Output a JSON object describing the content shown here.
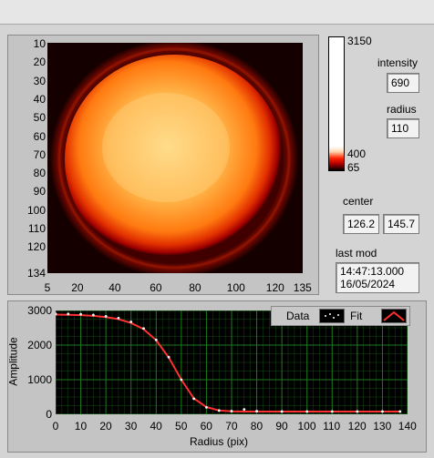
{
  "image_view": {
    "y_ticks": [
      "10",
      "20",
      "30",
      "40",
      "50",
      "60",
      "70",
      "80",
      "90",
      "100",
      "110",
      "120",
      "134"
    ],
    "x_ticks": [
      "5",
      "20",
      "40",
      "60",
      "80",
      "100",
      "120",
      "135"
    ]
  },
  "colorbar": {
    "ticks": [
      "3150",
      "400",
      "65"
    ]
  },
  "readouts": {
    "intensity_label": "intensity",
    "intensity_value": "690",
    "radius_label": "radius",
    "radius_value": "110",
    "center_label": "center",
    "center_x": "126.2",
    "center_y": "145.7",
    "last_mod_label": "last mod",
    "last_mod_time": "14:47:13.000",
    "last_mod_date": "16/05/2024"
  },
  "chart_data": {
    "type": "scatter",
    "xlabel": "Radius (pix)",
    "ylabel": "Amplitude",
    "xlim": [
      0,
      140
    ],
    "ylim": [
      0,
      3000
    ],
    "x_ticks": [
      "0",
      "10",
      "20",
      "30",
      "40",
      "50",
      "60",
      "70",
      "80",
      "90",
      "100",
      "110",
      "120",
      "130",
      "140"
    ],
    "y_ticks": [
      "0",
      "1000",
      "2000",
      "3000"
    ],
    "grid": true,
    "legend": [
      "Data",
      "Fit"
    ],
    "series": [
      {
        "name": "Data",
        "style": "points",
        "color": "#ffffff",
        "x": [
          0,
          5,
          10,
          15,
          20,
          25,
          30,
          35,
          40,
          45,
          50,
          55,
          60,
          65,
          70,
          75,
          80,
          90,
          100,
          110,
          120,
          130,
          137
        ],
        "y": [
          2900,
          2900,
          2890,
          2870,
          2830,
          2780,
          2670,
          2480,
          2150,
          1650,
          1000,
          450,
          200,
          110,
          90,
          140,
          90,
          80,
          80,
          80,
          80,
          80,
          80
        ]
      },
      {
        "name": "Fit",
        "style": "line",
        "color": "#ff3030",
        "x": [
          0,
          5,
          10,
          15,
          20,
          25,
          30,
          35,
          40,
          45,
          50,
          55,
          60,
          65,
          70,
          75,
          80,
          90,
          100,
          110,
          120,
          130,
          137
        ],
        "y": [
          2880,
          2875,
          2865,
          2845,
          2810,
          2750,
          2640,
          2460,
          2140,
          1640,
          1000,
          460,
          210,
          110,
          85,
          80,
          80,
          80,
          80,
          80,
          80,
          80,
          80
        ]
      }
    ]
  },
  "colors": {
    "grid": "#1f7a1f",
    "plot_bg": "#000000",
    "data_points": "#ffffff",
    "fit_line": "#ff3030"
  }
}
